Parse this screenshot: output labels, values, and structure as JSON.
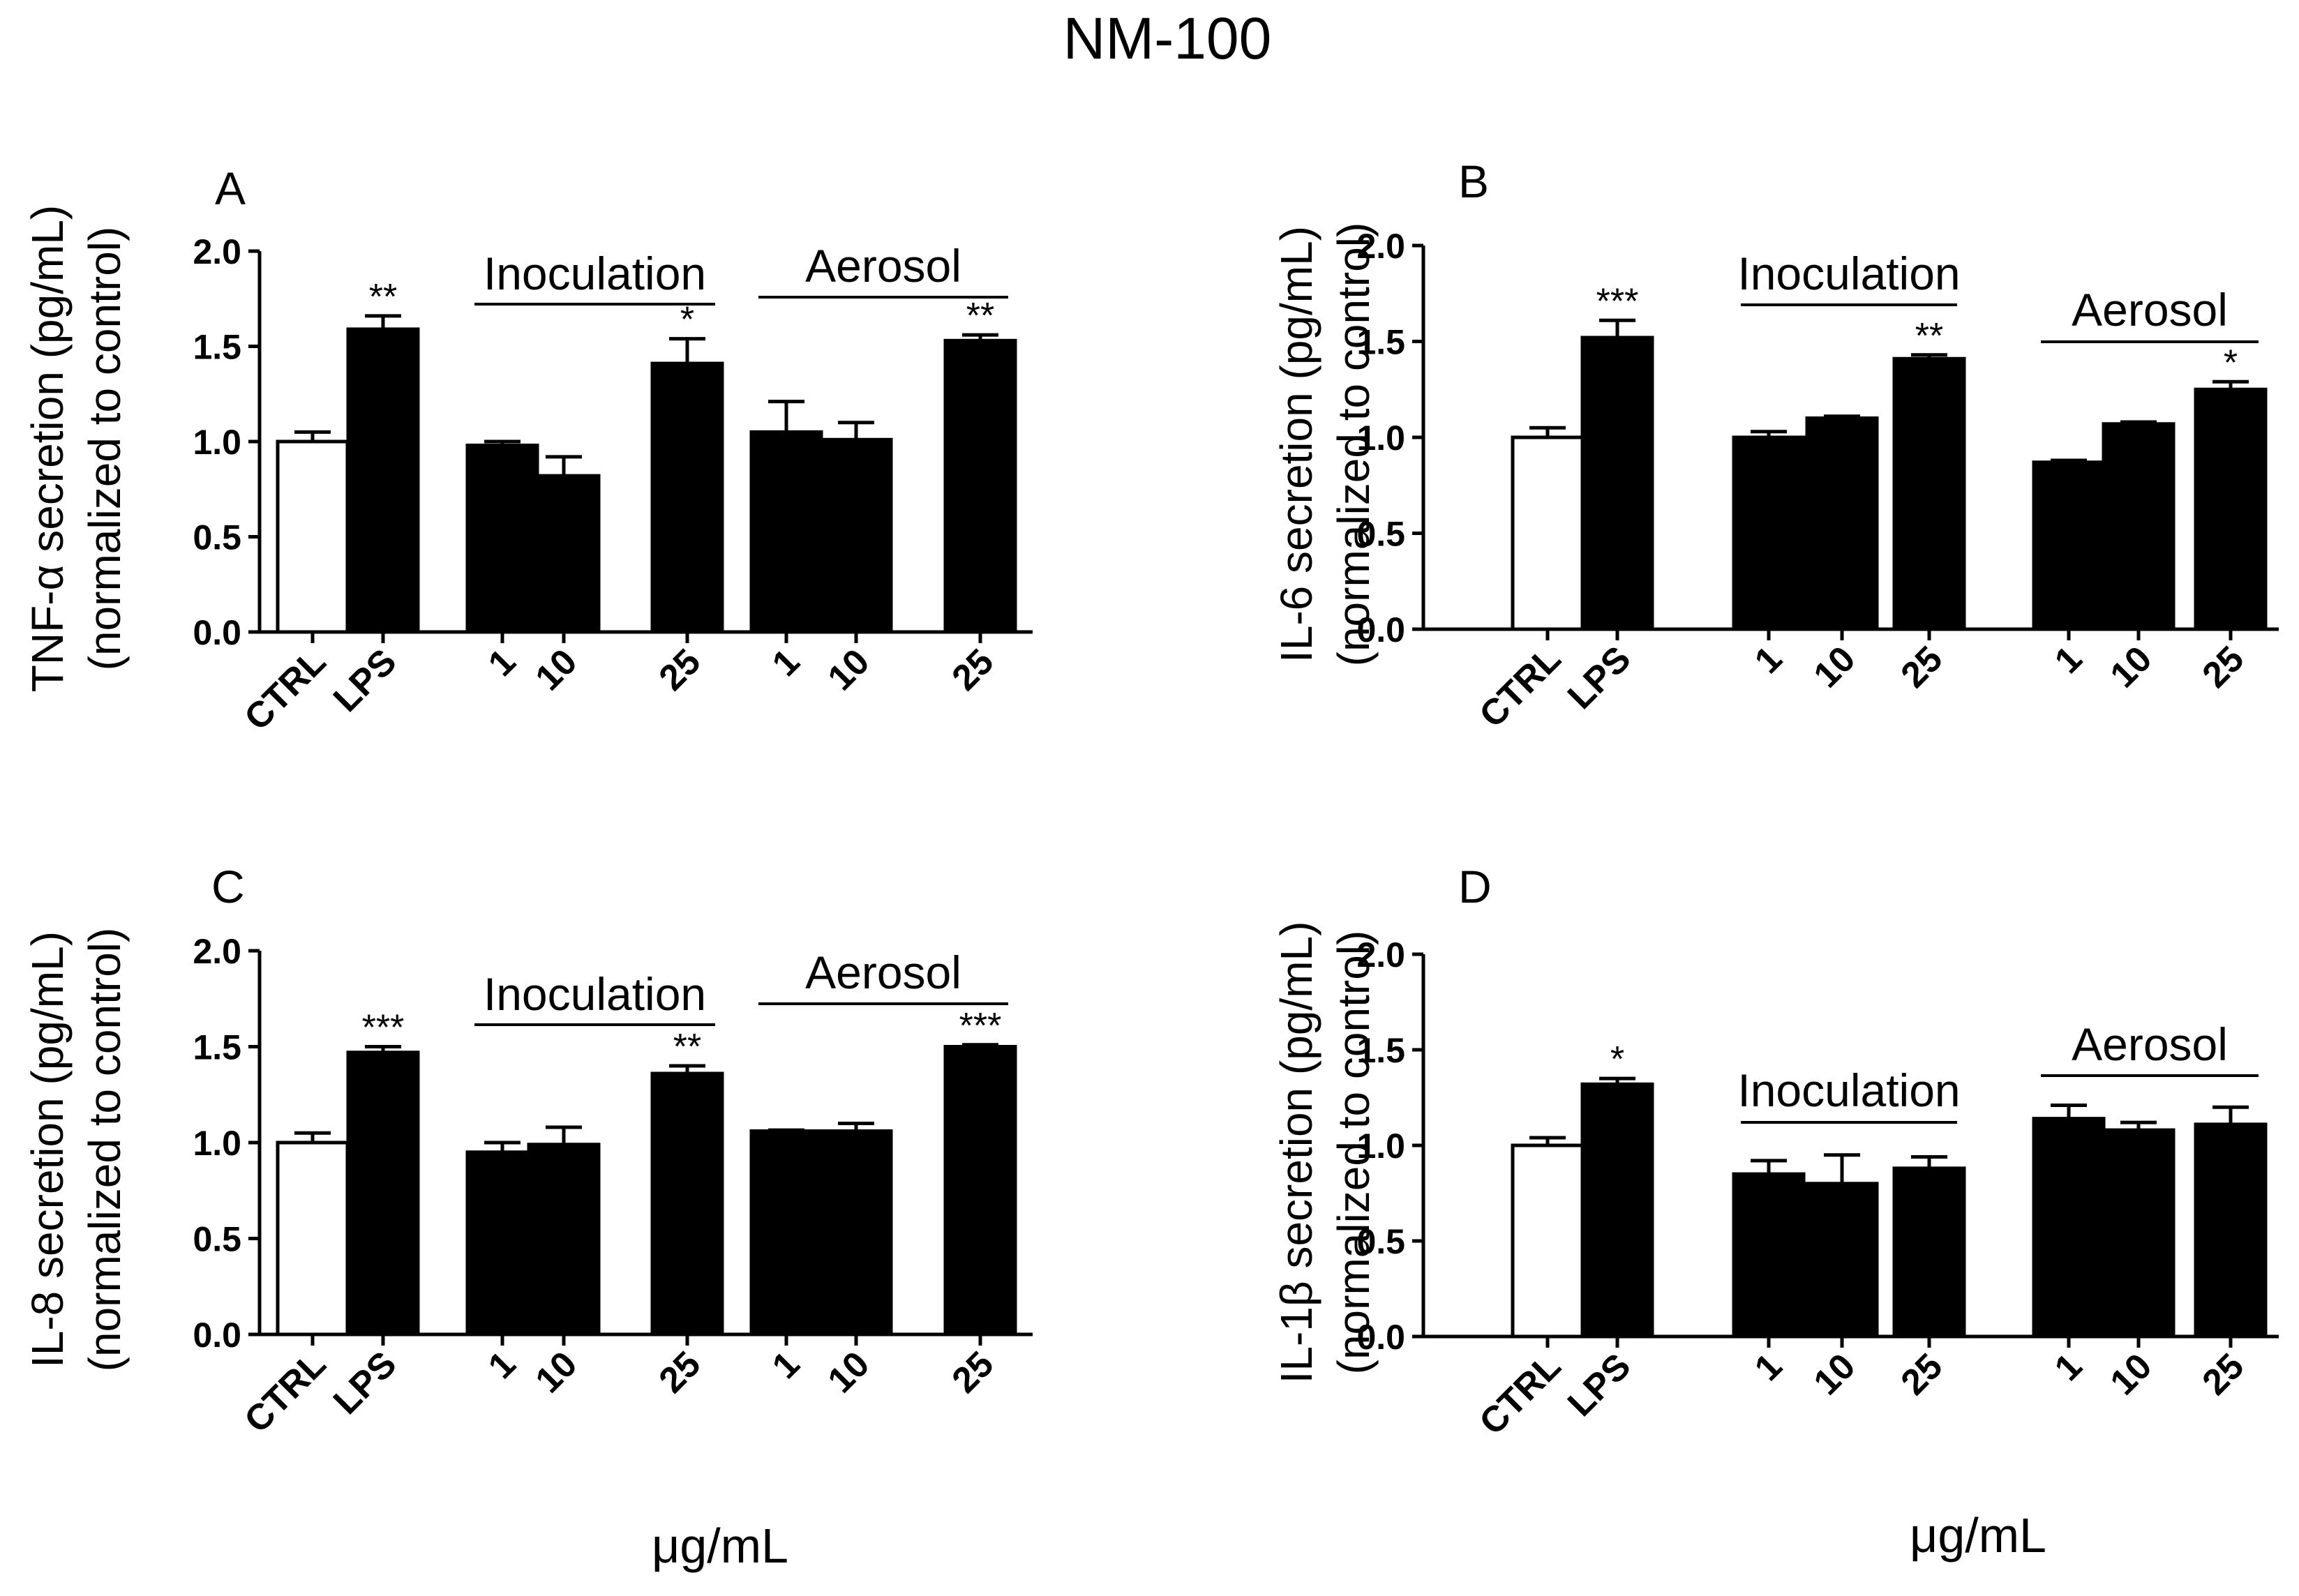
{
  "figure": {
    "title": "NM-100",
    "xlabel_left": "μg/mL",
    "xlabel_right": "μg/mL"
  },
  "colors": {
    "control_bar": "#ffffff",
    "treated_bar": "#000000",
    "axis": "#000000"
  },
  "chart_data": [
    {
      "panel": "A",
      "type": "bar",
      "ylabel_line1": "TNF-α secretion (pg/mL)",
      "ylabel_line2": "(normalized to control)",
      "ylim": [
        0,
        2.0
      ],
      "yticks": [
        "0.0",
        "0.5",
        "1.0",
        "1.5",
        "2.0"
      ],
      "categories": [
        "CTRL",
        "LPS",
        "1",
        "10",
        "25",
        "1",
        "10",
        "25"
      ],
      "groups": [
        {
          "label": "Inoculation",
          "categories": [
            "1",
            "10",
            "25"
          ]
        },
        {
          "label": "Aerosol",
          "categories": [
            "1",
            "10",
            "25"
          ]
        }
      ],
      "bars": [
        {
          "category": "CTRL",
          "group": "",
          "value": 1.0,
          "error": 0.05,
          "sig": "",
          "fill": "open"
        },
        {
          "category": "LPS",
          "group": "",
          "value": 1.59,
          "error": 0.07,
          "sig": "**",
          "fill": "filled"
        },
        {
          "category": "1",
          "group": "Inoculation",
          "value": 0.98,
          "error": 0.02,
          "sig": "",
          "fill": "filled"
        },
        {
          "category": "10",
          "group": "Inoculation",
          "value": 0.82,
          "error": 0.1,
          "sig": "",
          "fill": "filled"
        },
        {
          "category": "25",
          "group": "Inoculation",
          "value": 1.41,
          "error": 0.13,
          "sig": "*",
          "fill": "filled"
        },
        {
          "category": "1",
          "group": "Aerosol",
          "value": 1.05,
          "error": 0.16,
          "sig": "",
          "fill": "filled"
        },
        {
          "category": "10",
          "group": "Aerosol",
          "value": 1.01,
          "error": 0.09,
          "sig": "",
          "fill": "filled"
        },
        {
          "category": "25",
          "group": "Aerosol",
          "value": 1.53,
          "error": 0.03,
          "sig": "**",
          "fill": "filled"
        }
      ]
    },
    {
      "panel": "B",
      "type": "bar",
      "ylabel_line1": "IL-6 secretion (pg/mL)",
      "ylabel_line2": "(normalized to control)",
      "ylim": [
        0,
        2.0
      ],
      "yticks": [
        "0.0",
        "0.5",
        "1.0",
        "1.5",
        "2.0"
      ],
      "categories": [
        "CTRL",
        "LPS",
        "1",
        "10",
        "25",
        "1",
        "10",
        "25"
      ],
      "groups": [
        {
          "label": "Inoculation",
          "categories": [
            "1",
            "10",
            "25"
          ]
        },
        {
          "label": "Aerosol",
          "categories": [
            "1",
            "10",
            "25"
          ]
        }
      ],
      "bars": [
        {
          "category": "CTRL",
          "group": "",
          "value": 1.0,
          "error": 0.05,
          "sig": "",
          "fill": "open"
        },
        {
          "category": "LPS",
          "group": "",
          "value": 1.52,
          "error": 0.09,
          "sig": "***",
          "fill": "filled"
        },
        {
          "category": "1",
          "group": "Inoculation",
          "value": 1.0,
          "error": 0.03,
          "sig": "",
          "fill": "filled"
        },
        {
          "category": "10",
          "group": "Inoculation",
          "value": 1.1,
          "error": 0.01,
          "sig": "",
          "fill": "filled"
        },
        {
          "category": "25",
          "group": "Inoculation",
          "value": 1.41,
          "error": 0.02,
          "sig": "**",
          "fill": "filled"
        },
        {
          "category": "1",
          "group": "Aerosol",
          "value": 0.87,
          "error": 0.01,
          "sig": "",
          "fill": "filled"
        },
        {
          "category": "10",
          "group": "Aerosol",
          "value": 1.07,
          "error": 0.01,
          "sig": "",
          "fill": "filled"
        },
        {
          "category": "25",
          "group": "Aerosol",
          "value": 1.25,
          "error": 0.04,
          "sig": "*",
          "fill": "filled"
        }
      ]
    },
    {
      "panel": "C",
      "type": "bar",
      "ylabel_line1": "IL-8 secretion (pg/mL)",
      "ylabel_line2": "(normalized to control)",
      "ylim": [
        0,
        2.0
      ],
      "yticks": [
        "0.0",
        "0.5",
        "1.0",
        "1.5",
        "2.0"
      ],
      "categories": [
        "CTRL",
        "LPS",
        "1",
        "10",
        "25",
        "1",
        "10",
        "25"
      ],
      "groups": [
        {
          "label": "Inoculation",
          "categories": [
            "1",
            "10",
            "25"
          ]
        },
        {
          "label": "Aerosol",
          "categories": [
            "1",
            "10",
            "25"
          ]
        }
      ],
      "bars": [
        {
          "category": "CTRL",
          "group": "",
          "value": 1.0,
          "error": 0.05,
          "sig": "",
          "fill": "open"
        },
        {
          "category": "LPS",
          "group": "",
          "value": 1.47,
          "error": 0.03,
          "sig": "***",
          "fill": "filled"
        },
        {
          "category": "1",
          "group": "Inoculation",
          "value": 0.95,
          "error": 0.05,
          "sig": "",
          "fill": "filled"
        },
        {
          "category": "10",
          "group": "Inoculation",
          "value": 0.99,
          "error": 0.09,
          "sig": "",
          "fill": "filled"
        },
        {
          "category": "25",
          "group": "Inoculation",
          "value": 1.36,
          "error": 0.04,
          "sig": "**",
          "fill": "filled"
        },
        {
          "category": "1",
          "group": "Aerosol",
          "value": 1.06,
          "error": 0.005,
          "sig": "",
          "fill": "filled"
        },
        {
          "category": "10",
          "group": "Aerosol",
          "value": 1.06,
          "error": 0.04,
          "sig": "",
          "fill": "filled"
        },
        {
          "category": "25",
          "group": "Aerosol",
          "value": 1.5,
          "error": 0.01,
          "sig": "***",
          "fill": "filled"
        }
      ]
    },
    {
      "panel": "D",
      "type": "bar",
      "ylabel_line1": "IL-1β secretion (pg/mL)",
      "ylabel_line2": "(normalized to control)",
      "ylim": [
        0,
        2.0
      ],
      "yticks": [
        "0.0",
        "0.5",
        "1.0",
        "1.5",
        "2.0"
      ],
      "categories": [
        "CTRL",
        "LPS",
        "1",
        "10",
        "25",
        "1",
        "10",
        "25"
      ],
      "groups": [
        {
          "label": "Inoculation",
          "categories": [
            "1",
            "10",
            "25"
          ]
        },
        {
          "label": "Aerosol",
          "categories": [
            "1",
            "10",
            "25"
          ]
        }
      ],
      "bars": [
        {
          "category": "CTRL",
          "group": "",
          "value": 1.0,
          "error": 0.04,
          "sig": "",
          "fill": "open"
        },
        {
          "category": "LPS",
          "group": "",
          "value": 1.32,
          "error": 0.03,
          "sig": "*",
          "fill": "filled"
        },
        {
          "category": "1",
          "group": "Inoculation",
          "value": 0.85,
          "error": 0.07,
          "sig": "",
          "fill": "filled"
        },
        {
          "category": "10",
          "group": "Inoculation",
          "value": 0.8,
          "error": 0.15,
          "sig": "",
          "fill": "filled"
        },
        {
          "category": "25",
          "group": "Inoculation",
          "value": 0.88,
          "error": 0.06,
          "sig": "",
          "fill": "filled"
        },
        {
          "category": "1",
          "group": "Aerosol",
          "value": 1.14,
          "error": 0.07,
          "sig": "",
          "fill": "filled"
        },
        {
          "category": "10",
          "group": "Aerosol",
          "value": 1.08,
          "error": 0.04,
          "sig": "",
          "fill": "filled"
        },
        {
          "category": "25",
          "group": "Aerosol",
          "value": 1.11,
          "error": 0.09,
          "sig": "",
          "fill": "filled"
        }
      ]
    }
  ]
}
